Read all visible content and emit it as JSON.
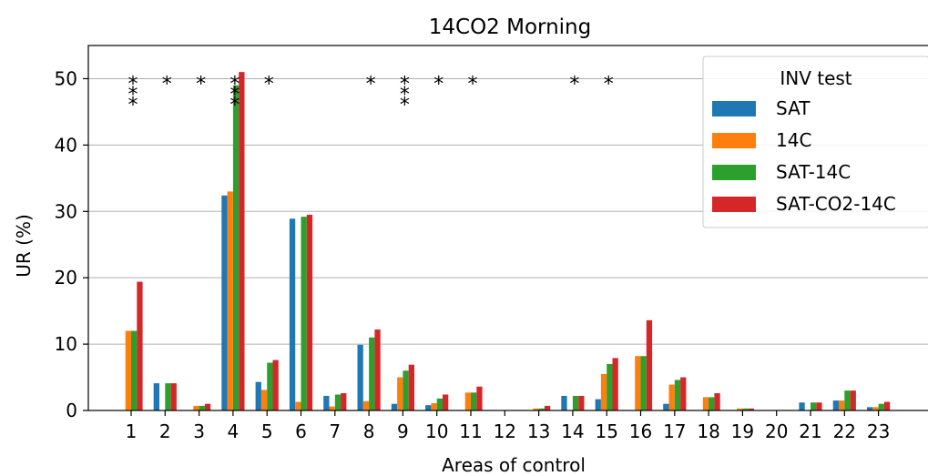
{
  "chart_data": {
    "type": "bar",
    "title": "14CO2 Morning",
    "xlabel": "Areas of control",
    "ylabel": "UR (%)",
    "ylim": [
      0,
      55
    ],
    "yticks": [
      0,
      10,
      20,
      30,
      40,
      50
    ],
    "grid": "y",
    "categories": [
      "1",
      "2",
      "3",
      "4",
      "5",
      "6",
      "7",
      "8",
      "9",
      "10",
      "11",
      "12",
      "13",
      "14",
      "15",
      "16",
      "17",
      "18",
      "19",
      "20",
      "21",
      "22",
      "23"
    ],
    "legend": {
      "title": "INV test",
      "placement": "top-right"
    },
    "series": [
      {
        "name": "SAT",
        "color": "#1f77b4",
        "values": [
          0,
          4.1,
          0,
          32.4,
          4.3,
          28.9,
          2.2,
          9.9,
          1.0,
          0.8,
          0,
          0,
          0,
          2.2,
          1.7,
          0,
          1.0,
          0,
          0,
          0,
          1.2,
          1.5,
          0.5
        ]
      },
      {
        "name": "14C",
        "color": "#ff7f0e",
        "values": [
          12.0,
          0,
          0.7,
          33.0,
          3.1,
          1.3,
          0.6,
          1.4,
          5.0,
          1.1,
          2.7,
          0,
          0.3,
          0,
          5.5,
          8.2,
          3.9,
          2.0,
          0.3,
          0,
          0,
          1.5,
          0.5
        ]
      },
      {
        "name": "SAT-14C",
        "color": "#2ca02c",
        "values": [
          12.0,
          4.1,
          0.7,
          49.0,
          7.2,
          29.2,
          2.4,
          11.0,
          6.0,
          1.8,
          2.7,
          0,
          0.3,
          2.2,
          7.0,
          8.2,
          4.6,
          2.0,
          0.3,
          0,
          1.2,
          3.0,
          1.0
        ]
      },
      {
        "name": "SAT-CO2-14C",
        "color": "#d62728",
        "values": [
          19.4,
          4.1,
          1.0,
          51.0,
          7.6,
          29.5,
          2.6,
          12.2,
          6.9,
          2.4,
          3.6,
          0,
          0.7,
          2.2,
          7.9,
          13.6,
          5.0,
          2.6,
          0.3,
          0,
          1.2,
          3.0,
          1.3
        ]
      }
    ],
    "annotations": [
      {
        "category": "1",
        "text": "***"
      },
      {
        "category": "2",
        "text": "*"
      },
      {
        "category": "3",
        "text": "*"
      },
      {
        "category": "4",
        "text": "***"
      },
      {
        "category": "5",
        "text": "*"
      },
      {
        "category": "8",
        "text": "*"
      },
      {
        "category": "9",
        "text": "***"
      },
      {
        "category": "10",
        "text": "*"
      },
      {
        "category": "11",
        "text": "*"
      },
      {
        "category": "14",
        "text": "*"
      },
      {
        "category": "15",
        "text": "*"
      }
    ],
    "annotation_level": 50
  }
}
